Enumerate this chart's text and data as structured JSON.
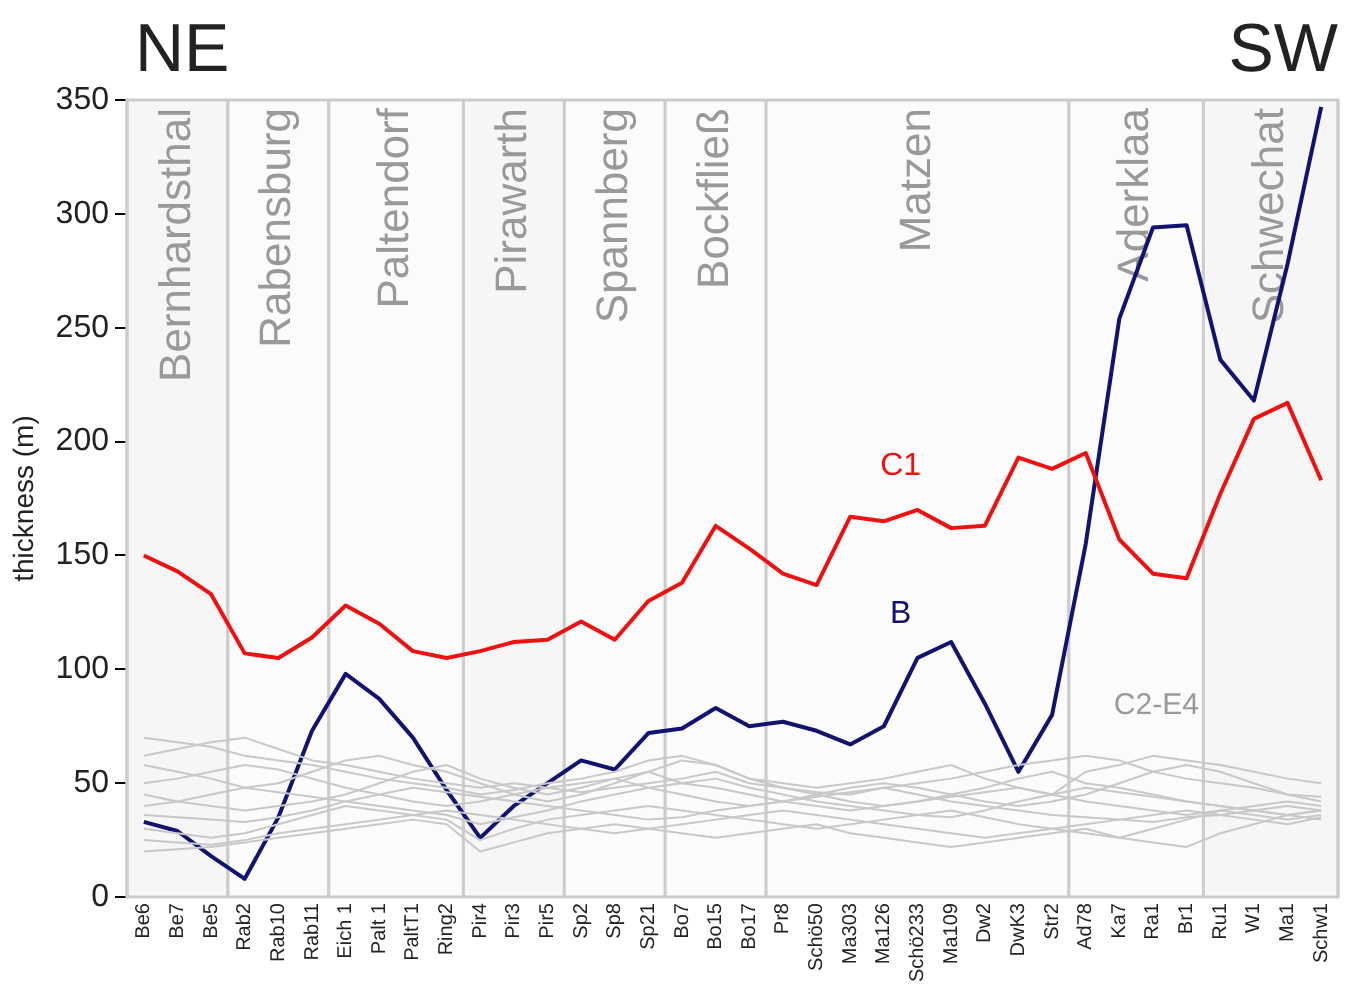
{
  "chart_data": {
    "type": "line",
    "ylabel": "thickness (m)",
    "categories": [
      "Be6",
      "Be7",
      "Be5",
      "Rab2",
      "Rab10",
      "Rab11",
      "Eich 1",
      "Palt 1",
      "PaltT1",
      "Ring2",
      "Pir4",
      "Pir3",
      "Pir5",
      "Sp2",
      "Sp8",
      "Sp21",
      "Bo7",
      "Bo15",
      "Bo17",
      "Pr8",
      "Schö50",
      "Ma303",
      "Ma126",
      "Schö233",
      "Ma109",
      "Dw2",
      "DwK3",
      "Str2",
      "Ad78",
      "Ka7",
      "Ra1",
      "Br1",
      "Ru1",
      "W1",
      "Ma1",
      "Schw1"
    ],
    "series": [
      {
        "color": "#c8c8c8",
        "values": [
          70,
          68,
          66,
          62,
          60,
          58,
          55,
          52,
          50,
          48,
          45,
          47,
          50,
          52,
          55,
          60,
          62,
          58,
          52,
          50,
          48,
          50,
          52,
          55,
          58,
          52,
          48,
          45,
          55,
          58,
          62,
          60,
          58,
          55,
          52,
          50
        ]
      },
      {
        "color": "#c8c8c8",
        "values": [
          62,
          65,
          68,
          70,
          65,
          60,
          58,
          55,
          52,
          50,
          48,
          50,
          48,
          46,
          48,
          50,
          52,
          55,
          50,
          48,
          46,
          45,
          48,
          50,
          52,
          55,
          58,
          60,
          62,
          60,
          55,
          52,
          50,
          48,
          45,
          44
        ]
      },
      {
        "color": "#c8c8c8",
        "values": [
          58,
          55,
          52,
          48,
          50,
          55,
          60,
          62,
          58,
          55,
          50,
          45,
          42,
          45,
          50,
          55,
          60,
          58,
          52,
          48,
          45,
          42,
          40,
          42,
          45,
          48,
          52,
          55,
          50,
          48,
          45,
          42,
          40,
          38,
          36,
          38
        ]
      },
      {
        "color": "#c8c8c8",
        "values": [
          50,
          52,
          55,
          58,
          56,
          52,
          48,
          45,
          42,
          40,
          42,
          45,
          48,
          50,
          52,
          48,
          45,
          42,
          40,
          42,
          45,
          48,
          50,
          48,
          45,
          42,
          40,
          42,
          45,
          50,
          55,
          58,
          55,
          50,
          45,
          42
        ]
      },
      {
        "color": "#c8c8c8",
        "values": [
          45,
          42,
          40,
          38,
          40,
          42,
          45,
          50,
          55,
          58,
          52,
          48,
          45,
          48,
          52,
          55,
          50,
          48,
          45,
          42,
          40,
          38,
          40,
          42,
          44,
          46,
          48,
          45,
          42,
          40,
          38,
          36,
          38,
          40,
          42,
          40
        ]
      },
      {
        "color": "#c8c8c8",
        "values": [
          40,
          42,
          45,
          48,
          46,
          44,
          42,
          40,
          38,
          36,
          32,
          35,
          38,
          42,
          45,
          48,
          50,
          52,
          48,
          45,
          42,
          40,
          38,
          36,
          35,
          38,
          42,
          45,
          48,
          46,
          44,
          42,
          40,
          38,
          36,
          34
        ]
      },
      {
        "color": "#c8c8c8",
        "values": [
          36,
          35,
          34,
          33,
          35,
          38,
          42,
          45,
          48,
          46,
          44,
          42,
          40,
          38,
          36,
          34,
          35,
          38,
          40,
          42,
          44,
          46,
          48,
          45,
          42,
          40,
          38,
          36,
          35,
          34,
          33,
          35,
          36,
          38,
          40,
          38
        ]
      },
      {
        "color": "#c8c8c8",
        "values": [
          30,
          28,
          26,
          28,
          32,
          36,
          40,
          38,
          36,
          34,
          25,
          30,
          34,
          36,
          38,
          40,
          38,
          36,
          34,
          32,
          30,
          32,
          34,
          36,
          38,
          35,
          32,
          30,
          28,
          26,
          30,
          34,
          38,
          36,
          34,
          36
        ]
      },
      {
        "color": "#c8c8c8",
        "values": [
          25,
          24,
          23,
          25,
          28,
          30,
          32,
          34,
          36,
          38,
          36,
          34,
          32,
          30,
          28,
          30,
          32,
          34,
          36,
          38,
          36,
          34,
          32,
          30,
          28,
          26,
          28,
          30,
          32,
          34,
          36,
          38,
          36,
          34,
          32,
          35
        ]
      },
      {
        "color": "#c8c8c8",
        "values": [
          20,
          21,
          22,
          24,
          26,
          28,
          30,
          32,
          34,
          32,
          20,
          24,
          28,
          30,
          32,
          30,
          28,
          26,
          28,
          30,
          32,
          28,
          26,
          24,
          22,
          24,
          26,
          28,
          30,
          26,
          24,
          22,
          28,
          32,
          36,
          38
        ]
      },
      {
        "name": "C1",
        "color": "#ee1111",
        "values": [
          150,
          143,
          133,
          107,
          105,
          114,
          128,
          120,
          108,
          105,
          108,
          112,
          113,
          121,
          113,
          130,
          138,
          163,
          153,
          142,
          137,
          167,
          165,
          170,
          162,
          163,
          193,
          188,
          195,
          157,
          142,
          140,
          177,
          210,
          217,
          183
        ]
      },
      {
        "name": "B",
        "color": "#101470",
        "values": [
          33,
          29,
          18,
          8,
          35,
          73,
          98,
          87,
          70,
          47,
          26,
          40,
          50,
          60,
          56,
          72,
          74,
          83,
          75,
          77,
          73,
          67,
          75,
          105,
          112,
          85,
          55,
          80,
          155,
          254,
          294,
          295,
          236,
          218,
          278,
          347
        ]
      }
    ],
    "ylim": [
      0,
      350
    ],
    "yticks": [
      0,
      50,
      100,
      150,
      200,
      250,
      300,
      350
    ],
    "legend": false,
    "bands": [
      {
        "axis": "x",
        "from": "Be6",
        "to": "Be5",
        "label": "Bernhardsthal",
        "color": "#f6f6f6"
      },
      {
        "axis": "x",
        "from": "Rab2",
        "to": "Rab11",
        "label": "Rabensburg",
        "color": "#fbfbfb"
      },
      {
        "axis": "x",
        "from": "Eich 1",
        "to": "Ring2",
        "label": "Paltendorf",
        "color": "#fbfbfb"
      },
      {
        "axis": "x",
        "from": "Pir4",
        "to": "Pir5",
        "label": "Pirawarth",
        "color": "#f6f6f6"
      },
      {
        "axis": "x",
        "from": "Sp2",
        "to": "Sp21",
        "label": "Spannberg",
        "color": "#fbfbfb"
      },
      {
        "axis": "x",
        "from": "Bo7",
        "to": "Bo17",
        "label": "Bockfließ",
        "color": "#fbfbfb"
      },
      {
        "axis": "x",
        "from": "Pr8",
        "to": "Str2",
        "label": "Matzen",
        "color": "#fbfbfb"
      },
      {
        "axis": "x",
        "from": "Ad78",
        "to": "Br1",
        "label": "Aderklaa",
        "color": "#fbfbfb"
      },
      {
        "axis": "x",
        "from": "Ru1",
        "to": "Schw1",
        "label": "Schwechat",
        "color": "#f6f6f6"
      }
    ],
    "annotations": [
      "NE",
      "SW",
      "C2-E4"
    ]
  }
}
